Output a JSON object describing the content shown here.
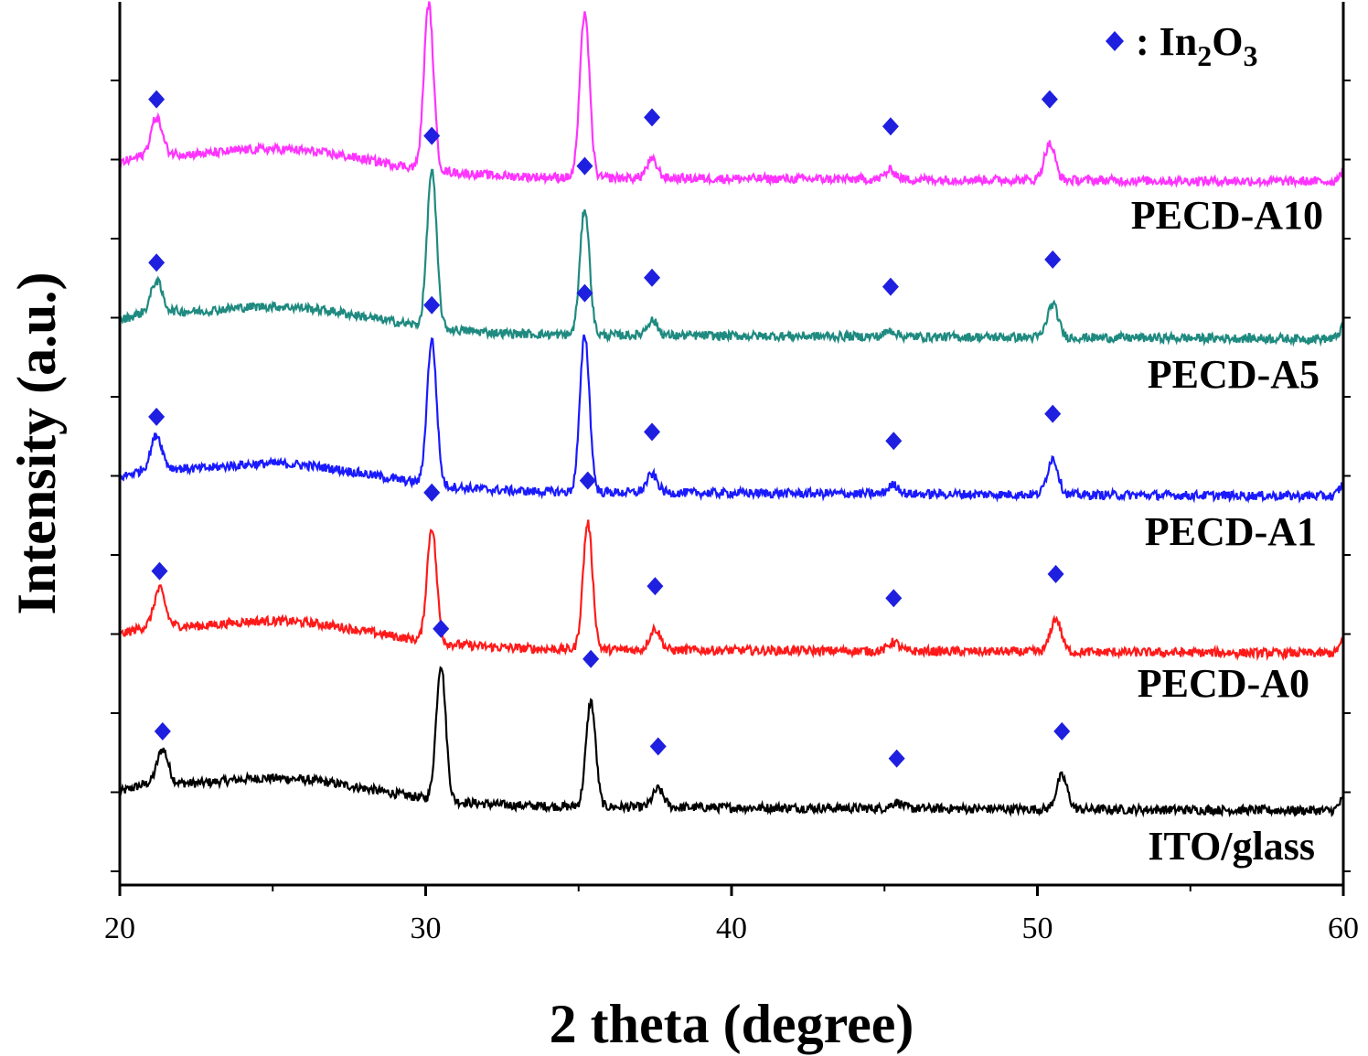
{
  "chart_data": {
    "type": "line",
    "xlabel": "2 theta (degree)",
    "ylabel": "Intensity (a.u.)",
    "xlim": [
      20,
      60
    ],
    "xticks": [
      "20",
      "30",
      "40",
      "50",
      "60"
    ],
    "y_tick_labels_shown": false,
    "grid": false,
    "stacked_offsets": true,
    "legend": {
      "position": "top-right",
      "marker": "diamond",
      "marker_color": "#1f1fe0",
      "text_prefix": ": In",
      "sub1": "2",
      "text_mid": "O",
      "sub2": "3"
    },
    "series": [
      {
        "name": "ITO/glass",
        "color": "#000000",
        "baseline": 0.0,
        "peaks": [
          [
            21.4,
            0.11
          ],
          [
            30.5,
            0.45
          ],
          [
            35.4,
            0.35
          ],
          [
            37.6,
            0.06
          ],
          [
            45.4,
            0.02
          ],
          [
            50.8,
            0.11
          ]
        ],
        "markers": [
          21.4,
          30.5,
          35.4,
          37.6,
          45.4,
          50.8
        ]
      },
      {
        "name": "PECD-A0",
        "color": "#ff1a1a",
        "baseline": 1.0,
        "peaks": [
          [
            21.3,
            0.12
          ],
          [
            30.2,
            0.38
          ],
          [
            35.3,
            0.42
          ],
          [
            37.5,
            0.07
          ],
          [
            45.3,
            0.03
          ],
          [
            50.6,
            0.11
          ]
        ],
        "markers": [
          21.3,
          30.2,
          35.3,
          37.5,
          45.3,
          50.6
        ]
      },
      {
        "name": "PECD-A1",
        "color": "#1a1aff",
        "baseline": 2.0,
        "peaks": [
          [
            21.2,
            0.11
          ],
          [
            30.2,
            0.48
          ],
          [
            35.2,
            0.52
          ],
          [
            37.4,
            0.06
          ],
          [
            45.3,
            0.03
          ],
          [
            50.5,
            0.12
          ]
        ],
        "markers": [
          21.2,
          30.2,
          35.2,
          37.4,
          45.3,
          50.5
        ]
      },
      {
        "name": "PECD-A5",
        "color": "#1f8a80",
        "baseline": 3.0,
        "peaks": [
          [
            21.2,
            0.1
          ],
          [
            30.2,
            0.52
          ],
          [
            35.2,
            0.42
          ],
          [
            37.4,
            0.05
          ],
          [
            45.2,
            0.02
          ],
          [
            50.5,
            0.11
          ]
        ],
        "markers": [
          21.2,
          30.2,
          35.2,
          37.4,
          45.2,
          50.5
        ]
      },
      {
        "name": "PECD-A10",
        "color": "#ff33ff",
        "baseline": 4.0,
        "peaks": [
          [
            21.2,
            0.12
          ],
          [
            30.1,
            0.55
          ],
          [
            35.2,
            0.55
          ],
          [
            37.4,
            0.06
          ],
          [
            45.2,
            0.03
          ],
          [
            50.4,
            0.12
          ]
        ],
        "markers": [
          21.2,
          30.1,
          35.2,
          37.4,
          45.2,
          50.4
        ]
      }
    ]
  }
}
